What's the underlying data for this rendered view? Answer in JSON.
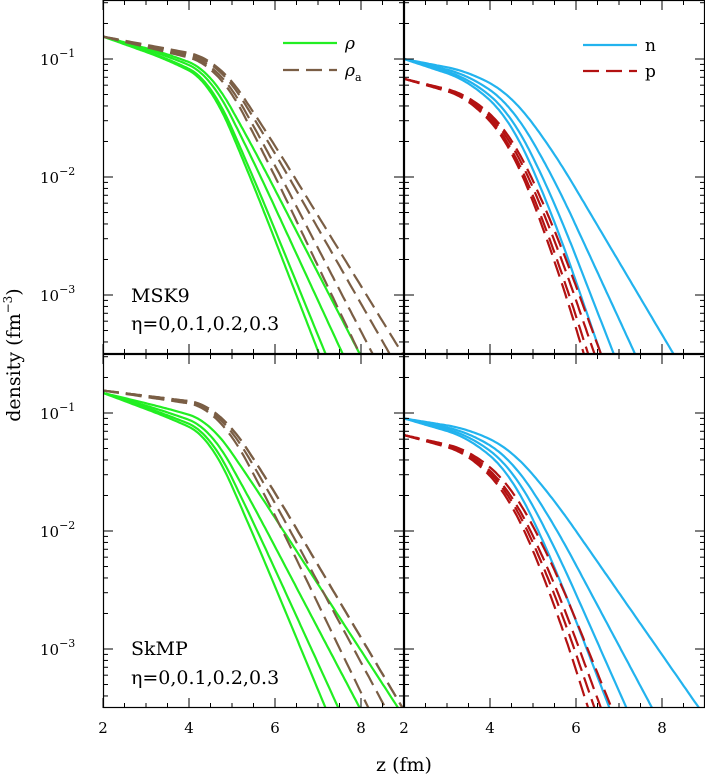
{
  "chart_data": {
    "type": "line",
    "xlabel": "z (fm)",
    "ylabel": "density (fm",
    "ylabel_exp": "−3",
    "ylabel_close": ")",
    "x_ticks": [
      "2",
      "4",
      "6",
      "8"
    ],
    "y_tick_base": "10",
    "y_tick_exps": [
      "−1",
      "−2",
      "−3"
    ],
    "xlim": [
      2,
      9
    ],
    "ylim_log10": [
      -3.5,
      -0.5
    ],
    "eta_values": [
      0,
      0.1,
      0.2,
      0.3
    ],
    "colors": {
      "rho": "#22ee22",
      "rho_a": "#7a5e45",
      "n": "#22b3ee",
      "p": "#b31212"
    },
    "legend": {
      "rho": "ρ",
      "rho_a_base": "ρ",
      "rho_a_sub": "a",
      "n": "n",
      "p": "p"
    },
    "panels": [
      {
        "row": "top",
        "column": "left",
        "model": "MSK9",
        "eta_label": "η=0,0.1,0.2,0.3",
        "series": [
          {
            "name": "rho",
            "style": "solid",
            "eta": [
              0,
              0.1,
              0.2,
              0.3
            ],
            "x0": 2.0,
            "y0": 0.155,
            "decay": [
              [
                3.0,
                0.1
              ],
              [
                4.0,
                0.14
              ],
              [
                5.0,
                0.66
              ],
              [
                6.0,
                0.72
              ],
              [
                7.0,
                0.72
              ],
              [
                9.0,
                0.72
              ]
            ],
            "zstop": [
              7.05,
              7.2,
              7.6,
              8.0
            ]
          },
          {
            "name": "rho_a",
            "style": "dashed",
            "eta": [
              0,
              0.1,
              0.2,
              0.3
            ],
            "x0": 2.0,
            "y0": 0.155,
            "decay": [
              [
                3.0,
                0.07
              ],
              [
                4.0,
                0.07
              ],
              [
                4.7,
                0.3
              ],
              [
                5.3,
                0.55
              ],
              [
                6.5,
                0.6
              ],
              [
                9.0,
                0.6
              ]
            ],
            "zstop": [
              8.0,
              8.3,
              8.7,
              9.0
            ]
          }
        ]
      },
      {
        "row": "top",
        "column": "right",
        "series": [
          {
            "name": "n",
            "style": "solid",
            "eta": [
              0,
              0.1,
              0.2,
              0.3
            ],
            "x0": 2.0,
            "y0": 0.1,
            "decay": [
              [
                3.0,
                0.08
              ],
              [
                4.0,
                0.22
              ],
              [
                5.0,
                0.55
              ],
              [
                6.0,
                0.7
              ],
              [
                9.0,
                0.7
              ]
            ],
            "zstop": [
              6.6,
              6.9,
              7.4,
              8.3
            ]
          },
          {
            "name": "p",
            "style": "dashed",
            "eta": [
              0,
              0.1,
              0.2,
              0.3
            ],
            "x0": 2.0,
            "y0": 0.068,
            "decay": [
              [
                3.0,
                0.08
              ],
              [
                4.0,
                0.3
              ],
              [
                5.0,
                0.72
              ],
              [
                6.0,
                0.9
              ],
              [
                9.0,
                0.95
              ]
            ],
            "zstop": [
              6.2,
              6.3,
              6.45,
              6.6
            ]
          }
        ]
      },
      {
        "row": "bottom",
        "column": "left",
        "model": "SkMP",
        "eta_label": "η=0,0.1,0.2,0.3",
        "series": [
          {
            "name": "rho",
            "style": "solid",
            "eta": [
              0,
              0.1,
              0.2,
              0.3
            ],
            "x0": 2.0,
            "y0": 0.148,
            "decay": [
              [
                3.0,
                0.1
              ],
              [
                4.0,
                0.12
              ],
              [
                5.0,
                0.6
              ],
              [
                6.0,
                0.64
              ],
              [
                7.0,
                0.64
              ],
              [
                9.0,
                0.64
              ]
            ],
            "zstop": [
              7.2,
              7.5,
              8.0,
              8.9
            ]
          },
          {
            "name": "rho_a",
            "style": "dashed",
            "eta": [
              0,
              0.1,
              0.2,
              0.3
            ],
            "x0": 2.0,
            "y0": 0.155,
            "decay": [
              [
                3.0,
                0.04
              ],
              [
                4.0,
                0.04
              ],
              [
                4.8,
                0.3
              ],
              [
                5.4,
                0.5
              ],
              [
                6.5,
                0.55
              ],
              [
                9.0,
                0.55
              ]
            ],
            "zstop": [
              8.2,
              8.6,
              9.0,
              9.0
            ]
          }
        ]
      },
      {
        "row": "bottom",
        "column": "right",
        "series": [
          {
            "name": "n",
            "style": "solid",
            "eta": [
              0,
              0.1,
              0.2,
              0.3
            ],
            "x0": 2.0,
            "y0": 0.09,
            "decay": [
              [
                3.0,
                0.07
              ],
              [
                4.0,
                0.2
              ],
              [
                5.0,
                0.5
              ],
              [
                6.0,
                0.62
              ],
              [
                9.0,
                0.62
              ]
            ],
            "zstop": [
              6.8,
              7.2,
              7.8,
              8.9
            ]
          },
          {
            "name": "p",
            "style": "dashed",
            "eta": [
              0,
              0.1,
              0.2,
              0.3
            ],
            "x0": 2.0,
            "y0": 0.065,
            "decay": [
              [
                3.0,
                0.07
              ],
              [
                4.0,
                0.26
              ],
              [
                5.0,
                0.6
              ],
              [
                6.0,
                0.78
              ],
              [
                9.0,
                0.8
              ]
            ],
            "zstop": [
              6.3,
              6.45,
              6.6,
              6.85
            ]
          }
        ]
      }
    ]
  }
}
